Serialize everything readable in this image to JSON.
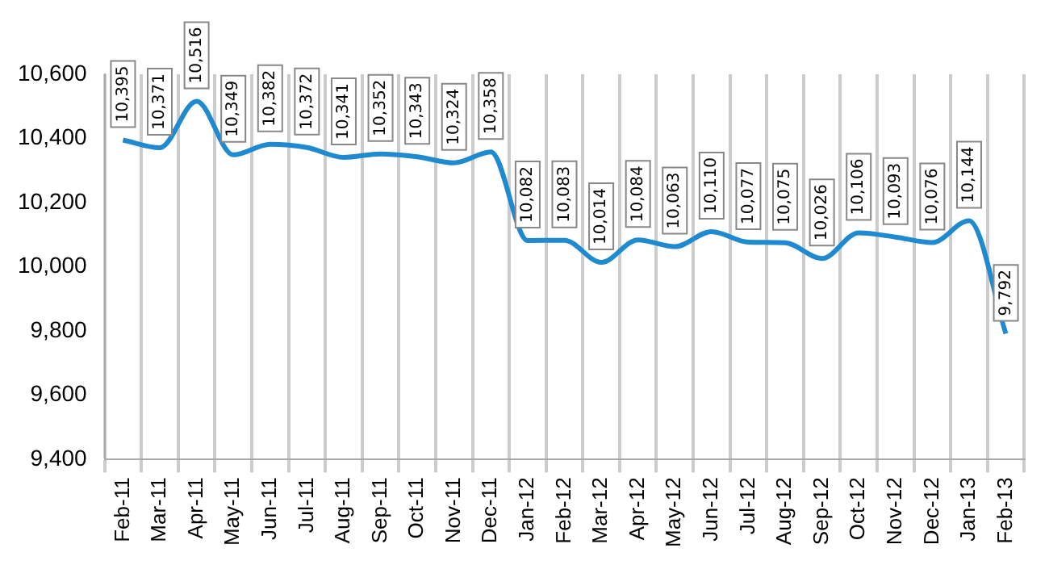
{
  "chart_data": {
    "type": "line",
    "categories": [
      "Feb-11",
      "Mar-11",
      "Apr-11",
      "May-11",
      "Jun-11",
      "Jul-11",
      "Aug-11",
      "Sep-11",
      "Oct-11",
      "Nov-11",
      "Dec-11",
      "Jan-12",
      "Feb-12",
      "Mar-12",
      "Apr-12",
      "May-12",
      "Jun-12",
      "Jul-12",
      "Aug-12",
      "Sep-12",
      "Oct-12",
      "Nov-12",
      "Dec-12",
      "Jan-13",
      "Feb-13"
    ],
    "series": [
      {
        "color": "#1f8ad0",
        "values": [
          10395,
          10371,
          10516,
          10349,
          10382,
          10372,
          10341,
          10352,
          10343,
          10324,
          10358,
          10082,
          10083,
          10014,
          10084,
          10063,
          10110,
          10077,
          10075,
          10026,
          10106,
          10093,
          10076,
          10144,
          9792
        ],
        "value_labels": [
          "10,395",
          "10,371",
          "10,516",
          "10,349",
          "10,382",
          "10,372",
          "10,341",
          "10,352",
          "10,343",
          "10,324",
          "10,358",
          "10,082",
          "10,083",
          "10,014",
          "10,084",
          "10,063",
          "10,110",
          "10,077",
          "10,075",
          "10,026",
          "10,106",
          "10,093",
          "10,076",
          "10,144",
          "9,792"
        ]
      }
    ],
    "ylim": [
      9400,
      10600
    ],
    "yticks": [
      {
        "value": 9400,
        "label": "9,400"
      },
      {
        "value": 9600,
        "label": "9,600"
      },
      {
        "value": 9800,
        "label": "9,800"
      },
      {
        "value": 10000,
        "label": "10,000"
      },
      {
        "value": 10200,
        "label": "10,200"
      },
      {
        "value": 10400,
        "label": "10,400"
      },
      {
        "value": 10600,
        "label": "10,600"
      }
    ],
    "grid": "x",
    "legend": false,
    "marker": "none",
    "line_style": "solid"
  }
}
